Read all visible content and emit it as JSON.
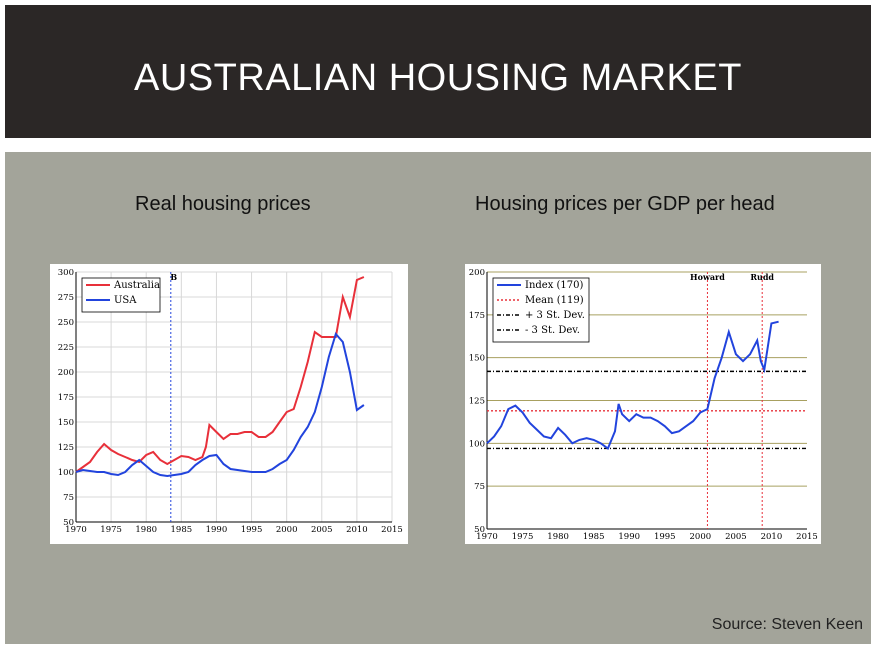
{
  "slide": {
    "title": "AUSTRALIAN HOUSING MARKET",
    "subtitle_left": "Real housing prices",
    "subtitle_right": "Housing prices per GDP per head",
    "source": "Source: Steven Keen"
  },
  "colors": {
    "header_bg": "#2b2726",
    "panel_bg": "#a3a49a",
    "red": "#e8303a",
    "blue": "#2244dd",
    "olive": "#a8a060"
  },
  "chart_data": [
    {
      "type": "line",
      "title": "",
      "xlim": [
        1970,
        2015
      ],
      "ylim": [
        50,
        300
      ],
      "xticks": [
        "1970",
        "1975",
        "1980",
        "1985",
        "1990",
        "1995",
        "2000",
        "2005",
        "2010",
        "2015"
      ],
      "yticks": [
        "50",
        "75",
        "100",
        "125",
        "150",
        "175",
        "200",
        "225",
        "250",
        "275",
        "300"
      ],
      "annotations": [
        {
          "text": "B",
          "x": 1983.5
        }
      ],
      "legend": "top-left",
      "series": [
        {
          "name": "Australia",
          "color": "#e8303a",
          "x": [
            1970,
            1971,
            1972,
            1973,
            1974,
            1975,
            1976,
            1977,
            1978,
            1979,
            1980,
            1981,
            1982,
            1983,
            1984,
            1985,
            1986,
            1987,
            1988,
            1988.5,
            1989,
            1990,
            1991,
            1992,
            1993,
            1994,
            1995,
            1996,
            1997,
            1998,
            1999,
            2000,
            2001,
            2002,
            2003,
            2004,
            2005,
            2006,
            2007,
            2008,
            2009,
            2010,
            2011
          ],
          "y": [
            100,
            105,
            110,
            120,
            128,
            122,
            118,
            115,
            112,
            110,
            117,
            120,
            112,
            108,
            112,
            116,
            115,
            112,
            115,
            125,
            147,
            140,
            133,
            138,
            138,
            140,
            140,
            135,
            135,
            140,
            150,
            160,
            163,
            185,
            210,
            240,
            235,
            235,
            235,
            275,
            255,
            292,
            295
          ]
        },
        {
          "name": "USA",
          "color": "#2244dd",
          "x": [
            1970,
            1971,
            1972,
            1973,
            1974,
            1975,
            1976,
            1977,
            1978,
            1979,
            1980,
            1981,
            1982,
            1983,
            1984,
            1985,
            1986,
            1987,
            1988,
            1989,
            1990,
            1991,
            1992,
            1993,
            1994,
            1995,
            1996,
            1997,
            1998,
            1999,
            2000,
            2001,
            2002,
            2003,
            2004,
            2005,
            2006,
            2007,
            2008,
            2009,
            2010,
            2011
          ],
          "y": [
            100,
            102,
            101,
            100,
            100,
            98,
            97,
            100,
            107,
            112,
            106,
            100,
            97,
            96,
            97,
            98,
            100,
            107,
            112,
            116,
            117,
            108,
            103,
            102,
            101,
            100,
            100,
            100,
            103,
            108,
            112,
            122,
            135,
            145,
            160,
            185,
            215,
            238,
            230,
            200,
            162,
            167
          ]
        }
      ]
    },
    {
      "type": "line",
      "title": "",
      "xlim": [
        1970,
        2015
      ],
      "ylim": [
        50,
        200
      ],
      "xticks": [
        "1970",
        "1975",
        "1980",
        "1985",
        "1990",
        "1995",
        "2000",
        "2005",
        "2010",
        "2015"
      ],
      "yticks": [
        "50",
        "75",
        "100",
        "125",
        "150",
        "175",
        "200"
      ],
      "annotations": [
        {
          "text": "Howard",
          "x": 2001
        },
        {
          "text": "Rudd",
          "x": 2008.7
        }
      ],
      "horizontal_lines": [
        {
          "name": "Mean (119)",
          "y": 119,
          "style": "dotted",
          "color": "#e8303a"
        },
        {
          "name": "+ 3 St. Dev.",
          "y": 142,
          "style": "dashdot",
          "color": "#000000"
        },
        {
          "name": "- 3 St. Dev.",
          "y": 97,
          "style": "dashdot",
          "color": "#000000"
        }
      ],
      "legend": "top-left",
      "series": [
        {
          "name": "Index (170)",
          "color": "#2244dd",
          "x": [
            1970,
            1971,
            1972,
            1973,
            1974,
            1975,
            1976,
            1977,
            1978,
            1979,
            1980,
            1981,
            1982,
            1983,
            1984,
            1985,
            1986,
            1987,
            1988,
            1988.5,
            1989,
            1990,
            1991,
            1992,
            1993,
            1994,
            1995,
            1996,
            1997,
            1998,
            1999,
            2000,
            2001,
            2002,
            2003,
            2004,
            2005,
            2006,
            2007,
            2008,
            2008.5,
            2009,
            2010,
            2011
          ],
          "y": [
            100,
            104,
            110,
            120,
            122,
            118,
            112,
            108,
            104,
            103,
            109,
            105,
            100,
            102,
            103,
            102,
            100,
            97,
            107,
            123,
            117,
            113,
            117,
            115,
            115,
            113,
            110,
            106,
            107,
            110,
            113,
            118,
            120,
            138,
            150,
            165,
            152,
            148,
            152,
            160,
            148,
            143,
            170,
            171
          ]
        }
      ]
    }
  ]
}
